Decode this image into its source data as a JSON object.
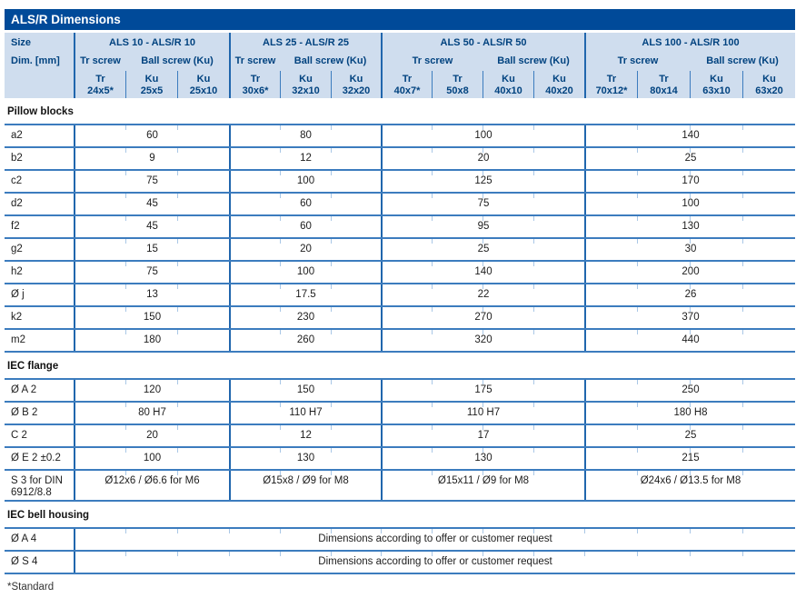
{
  "title": "ALS/R Dimensions",
  "header": {
    "size_label": "Size",
    "dim_label": "Dim. [mm]",
    "groups": [
      {
        "label": "ALS 10 - ALS/R 10",
        "tr_label": "Tr screw",
        "ball_label": "Ball screw (Ku)",
        "screws": [
          {
            "type": "Tr",
            "size": "24x5*"
          },
          {
            "type": "Ku",
            "size": "25x5"
          },
          {
            "type": "Ku",
            "size": "25x10"
          }
        ]
      },
      {
        "label": "ALS 25 - ALS/R 25",
        "tr_label": "Tr screw",
        "ball_label": "Ball screw (Ku)",
        "screws": [
          {
            "type": "Tr",
            "size": "30x6*"
          },
          {
            "type": "Ku",
            "size": "32x10"
          },
          {
            "type": "Ku",
            "size": "32x20"
          }
        ]
      },
      {
        "label": "ALS 50 - ALS/R 50",
        "tr_label": "Tr screw",
        "ball_label": "Ball screw (Ku)",
        "screws": [
          {
            "type": "Tr",
            "size": "40x7*"
          },
          {
            "type": "Tr",
            "size": "50x8"
          },
          {
            "type": "Ku",
            "size": "40x10"
          },
          {
            "type": "Ku",
            "size": "40x20"
          }
        ]
      },
      {
        "label": "ALS 100 - ALS/R 100",
        "tr_label": "Tr screw",
        "ball_label": "Ball screw (Ku)",
        "screws": [
          {
            "type": "Tr",
            "size": "70x12*"
          },
          {
            "type": "Tr",
            "size": "80x14"
          },
          {
            "type": "Ku",
            "size": "63x10"
          },
          {
            "type": "Ku",
            "size": "63x20"
          }
        ]
      }
    ]
  },
  "sections": [
    {
      "title": "Pillow blocks",
      "rows": [
        {
          "label": "a2",
          "values": [
            "60",
            "80",
            "100",
            "140"
          ]
        },
        {
          "label": "b2",
          "values": [
            "9",
            "12",
            "20",
            "25"
          ]
        },
        {
          "label": "c2",
          "values": [
            "75",
            "100",
            "125",
            "170"
          ]
        },
        {
          "label": "d2",
          "values": [
            "45",
            "60",
            "75",
            "100"
          ]
        },
        {
          "label": "f2",
          "values": [
            "45",
            "60",
            "95",
            "130"
          ]
        },
        {
          "label": "g2",
          "values": [
            "15",
            "20",
            "25",
            "30"
          ]
        },
        {
          "label": "h2",
          "values": [
            "75",
            "100",
            "140",
            "200"
          ]
        },
        {
          "label": "Ø j",
          "values": [
            "13",
            "17.5",
            "22",
            "26"
          ]
        },
        {
          "label": "k2",
          "values": [
            "150",
            "230",
            "270",
            "370"
          ]
        },
        {
          "label": "m2",
          "values": [
            "180",
            "260",
            "320",
            "440"
          ]
        }
      ]
    },
    {
      "title": "IEC flange",
      "rows": [
        {
          "label": "Ø A 2",
          "values": [
            "120",
            "150",
            "175",
            "250"
          ]
        },
        {
          "label": "Ø B 2",
          "values": [
            "80 H7",
            "110 H7",
            "110 H7",
            "180 H8"
          ]
        },
        {
          "label": "C 2",
          "values": [
            "20",
            "12",
            "17",
            "25"
          ]
        },
        {
          "label": "Ø E 2 ±0.2",
          "values": [
            "100",
            "130",
            "130",
            "215"
          ]
        },
        {
          "label": "S 3 for DIN 6912/8.8",
          "values": [
            "Ø12x6 / Ø6.6 for M6",
            "Ø15x8 / Ø9 for M8",
            "Ø15x11 / Ø9 for M8",
            "Ø24x6 / Ø13.5 for M8"
          ]
        }
      ]
    },
    {
      "title": "IEC bell housing",
      "rows": [
        {
          "label": "Ø A 4",
          "span_value": "Dimensions according to offer or customer request"
        },
        {
          "label": "Ø S 4",
          "span_value": "Dimensions according to offer or customer request"
        }
      ]
    }
  ],
  "footnote": "*Standard",
  "colors": {
    "title_bar_bg": "#004a99",
    "header_band_bg": "#cfddee",
    "header_text": "#00427f",
    "grid_strong": "#2066ad",
    "grid_line": "#3c7cbe",
    "grid_tick": "#a9c7e6"
  }
}
